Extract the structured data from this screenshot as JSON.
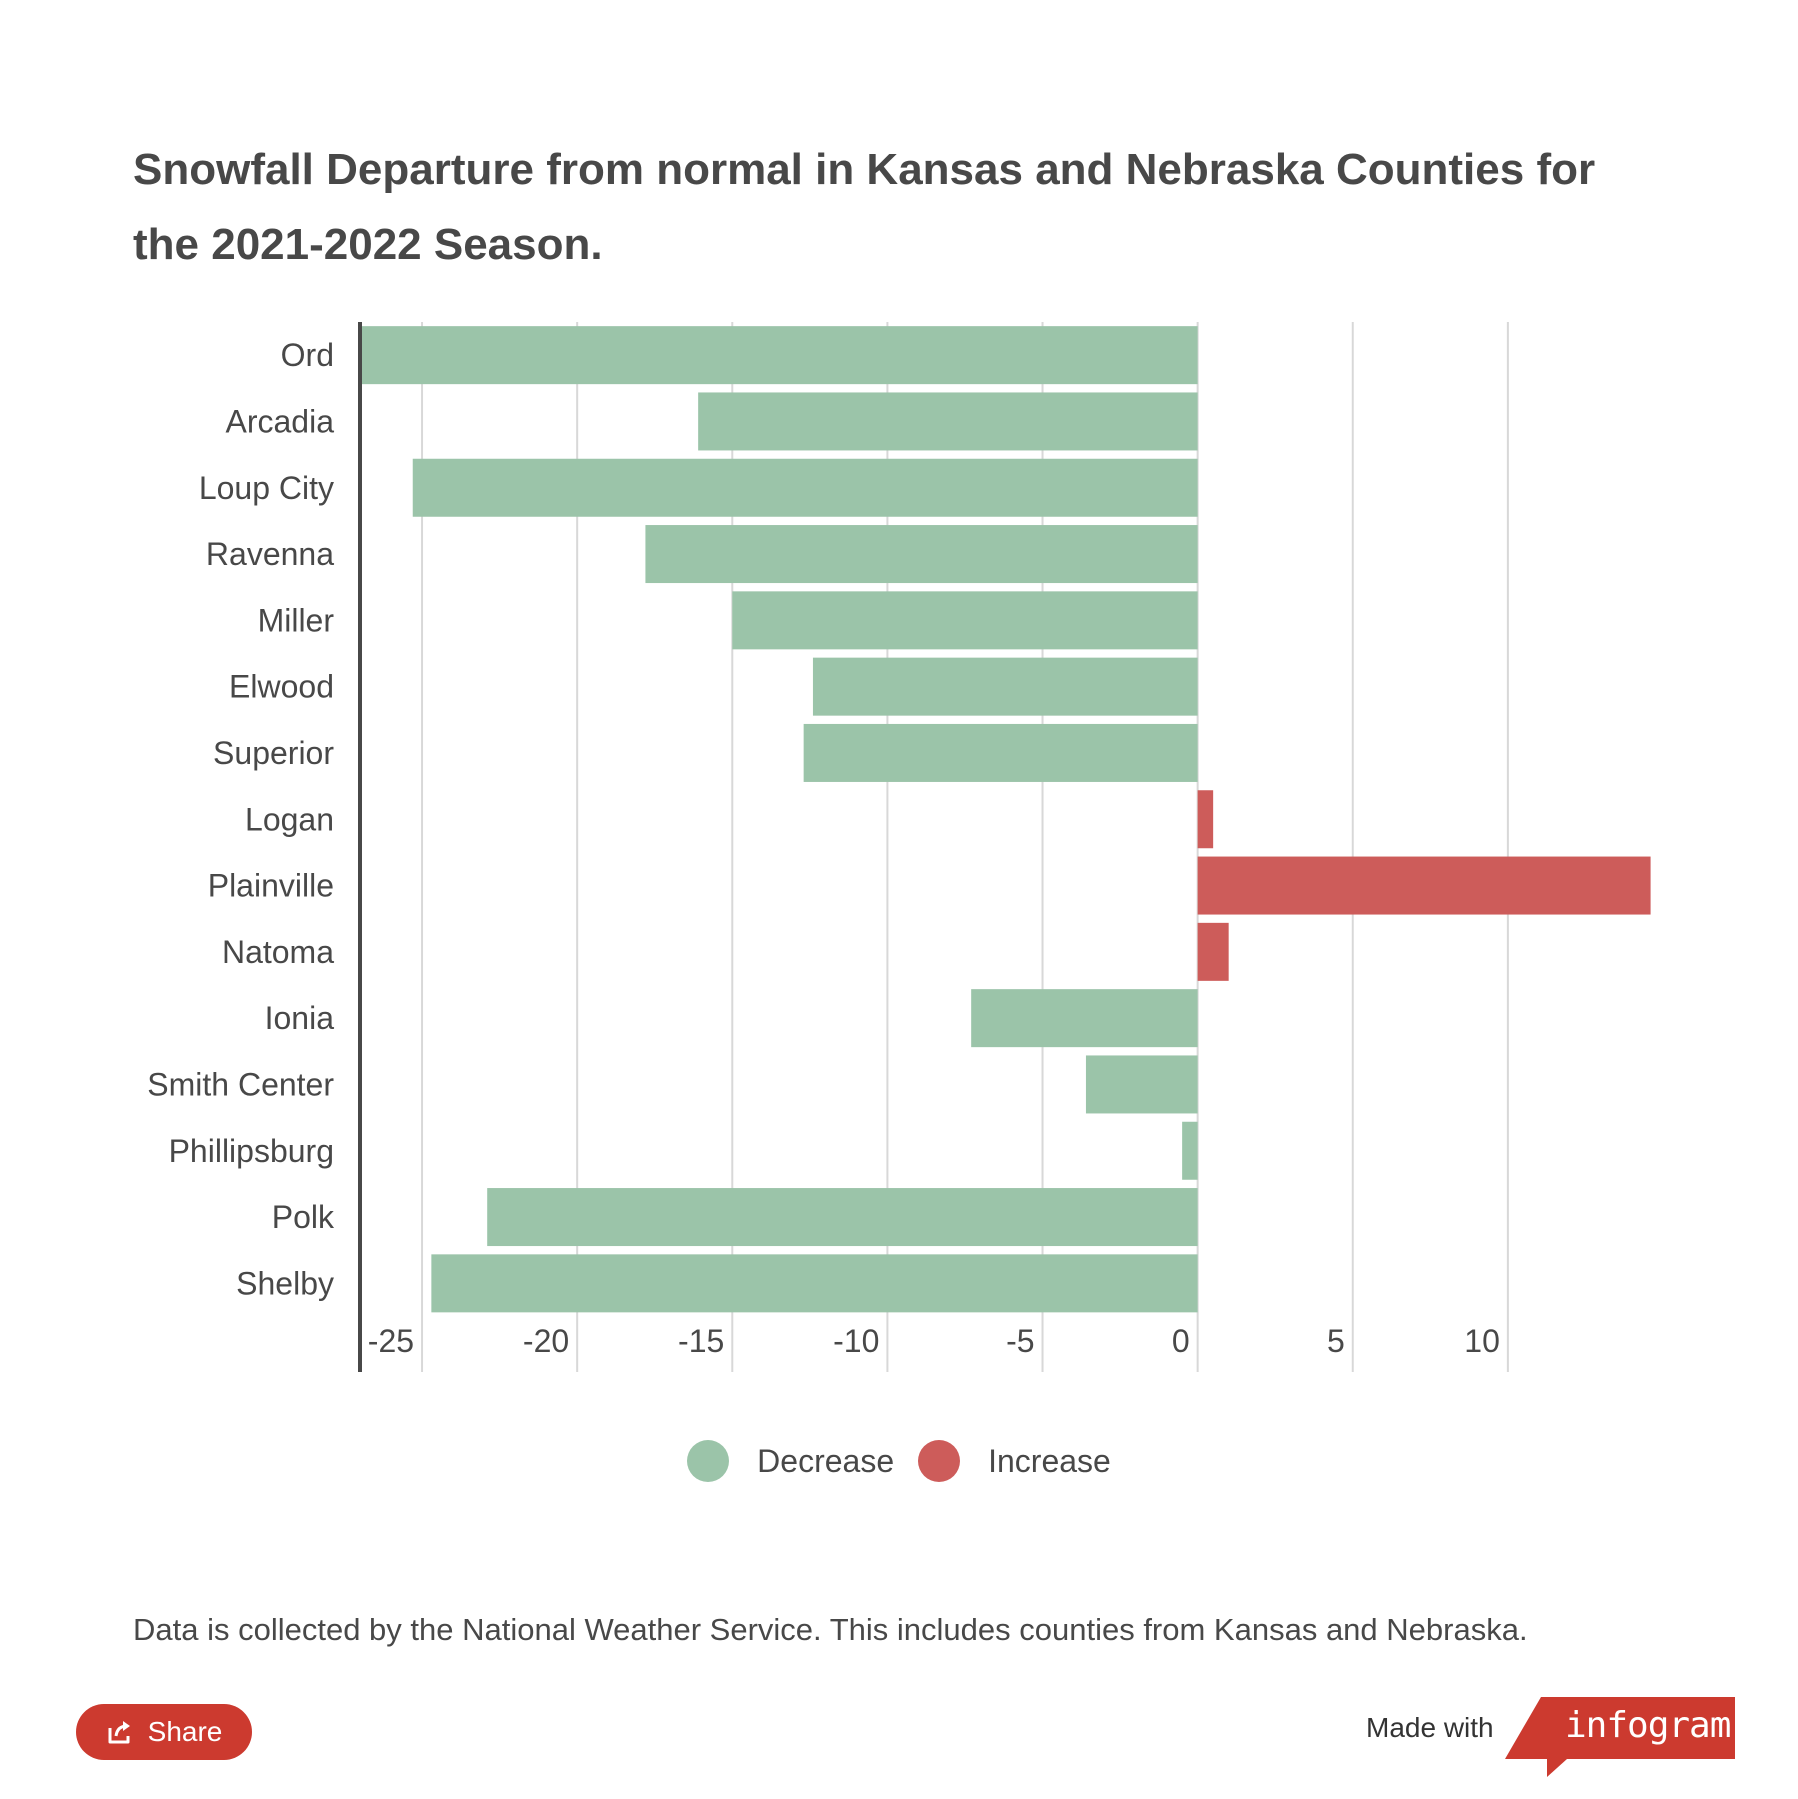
{
  "title": "Snowfall Departure from normal in Kansas and Nebraska Counties for the 2021-2022 Season.",
  "footnote": "Data is collected by the National Weather Service. This includes counties from Kansas and Nebraska.",
  "share": {
    "label": "Share",
    "icon": "share-icon"
  },
  "branding": {
    "made_with": "Made with",
    "logo": "infogram"
  },
  "legend": [
    {
      "label": "Decrease",
      "color": "#9bc4a9"
    },
    {
      "label": "Increase",
      "color": "#cd5c5a"
    }
  ],
  "colors": {
    "decrease": "#9bc4a9",
    "increase": "#cd5c5a",
    "grid": "#d8d8d8",
    "axis": "#484848",
    "brand_red": "#cc3a2f"
  },
  "chart_data": {
    "type": "bar",
    "orientation": "horizontal",
    "title": "Snowfall Departure from normal in Kansas and Nebraska Counties for the 2021-2022 Season.",
    "xlabel": "",
    "ylabel": "",
    "xlim": [
      -27,
      15
    ],
    "x_ticks": [
      -25,
      -20,
      -15,
      -10,
      -5,
      0,
      5,
      10
    ],
    "grid": true,
    "legend_position": "bottom",
    "categories": [
      "Ord",
      "Arcadia",
      "Loup City",
      "Ravenna",
      "Miller",
      "Elwood",
      "Superior",
      "Logan",
      "Plainville",
      "Natoma",
      "Ionia",
      "Smith Center",
      "Phillipsburg",
      "Polk",
      "Shelby"
    ],
    "values": [
      -27.0,
      -16.1,
      -25.3,
      -17.8,
      -15.0,
      -12.4,
      -12.7,
      0.5,
      14.6,
      1.0,
      -7.3,
      -3.6,
      -0.5,
      -22.9,
      -24.7
    ]
  }
}
